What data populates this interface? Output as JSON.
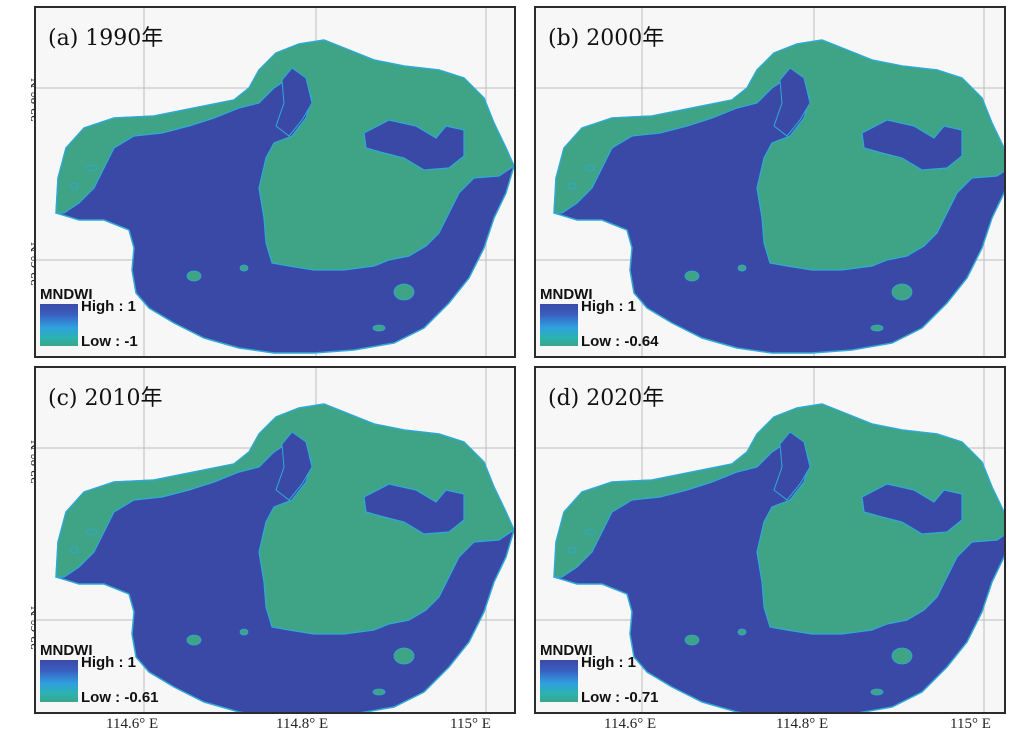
{
  "panels": [
    {
      "title": "(a) 1990年",
      "legend_title": "MNDWI",
      "high": "High : 1",
      "low": "Low : -1"
    },
    {
      "title": "(b) 2000年",
      "legend_title": "MNDWI",
      "high": "High : 1",
      "low": "Low : -0.64"
    },
    {
      "title": "(c) 2010年",
      "legend_title": "MNDWI",
      "high": "High : 1",
      "low": "Low : -0.61"
    },
    {
      "title": "(d) 2020年",
      "legend_title": "MNDWI",
      "high": "High : 1",
      "low": "Low : -0.71"
    }
  ],
  "y_axis": [
    "22.8° N",
    "22.6° N",
    "22.8° N",
    "22.6° N"
  ],
  "x_axis": [
    "114.6° E",
    "114.8° E",
    "115° E",
    "114.6° E",
    "114.8° E",
    "115° E"
  ],
  "colors": {
    "water": "#3b49a6",
    "land": "#3fa386",
    "shore": "#2fa9d8",
    "frame": "#2b2b2b"
  }
}
